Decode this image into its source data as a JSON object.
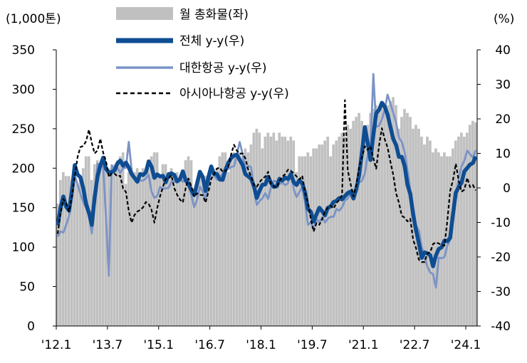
{
  "chart_data": {
    "type": "bar+line",
    "left_unit": "(1,000톤)",
    "right_unit": "(%)",
    "left_ylim": [
      0,
      350
    ],
    "right_ylim": [
      -40,
      40
    ],
    "left_ticks": [
      0,
      50,
      100,
      150,
      200,
      250,
      300,
      350
    ],
    "right_ticks": [
      -40,
      -30,
      -20,
      -10,
      0,
      10,
      20,
      30,
      40
    ],
    "x_tick_labels": [
      "'12.1",
      "'13.7",
      "'15.1",
      "'16.7",
      "'18.1",
      "'19.7",
      "'21.1",
      "'22.7",
      "'24.1"
    ],
    "x_tick_month_index": [
      0,
      18,
      36,
      54,
      72,
      90,
      108,
      126,
      144
    ],
    "n_months": 148,
    "colors": {
      "bar": "#c0c0c0",
      "total": "#0e4d92",
      "korean_air": "#7b93c6",
      "asiana": "#000000"
    },
    "legend": [
      {
        "label": "월 총화물(좌)",
        "style": "bar"
      },
      {
        "label": "전체 y-y(우)",
        "style": "total"
      },
      {
        "label": "대한항공 y-y(우)",
        "style": "korean_air"
      },
      {
        "label": "아시아나항공 y-y(우)",
        "style": "asiana"
      }
    ],
    "bars_monthly_total": [
      155,
      185,
      195,
      190,
      190,
      185,
      190,
      180,
      185,
      200,
      215,
      215,
      185,
      205,
      210,
      205,
      210,
      200,
      200,
      195,
      205,
      210,
      215,
      220,
      180,
      195,
      200,
      195,
      200,
      190,
      200,
      195,
      200,
      215,
      220,
      220,
      190,
      205,
      205,
      195,
      200,
      190,
      195,
      185,
      195,
      210,
      215,
      210,
      175,
      185,
      190,
      185,
      190,
      185,
      195,
      190,
      200,
      215,
      220,
      220,
      195,
      210,
      220,
      215,
      220,
      215,
      225,
      220,
      230,
      245,
      250,
      245,
      225,
      240,
      245,
      240,
      245,
      235,
      245,
      240,
      240,
      235,
      240,
      235,
      195,
      215,
      215,
      215,
      220,
      215,
      225,
      225,
      230,
      230,
      235,
      240,
      215,
      230,
      235,
      240,
      245,
      240,
      255,
      250,
      260,
      265,
      270,
      260,
      235,
      255,
      270,
      275,
      280,
      275,
      280,
      275,
      280,
      285,
      290,
      280,
      250,
      265,
      275,
      270,
      265,
      250,
      255,
      250,
      240,
      230,
      240,
      235,
      220,
      225,
      220,
      215,
      220,
      215,
      215,
      225,
      235,
      240,
      245,
      240,
      245,
      255,
      260,
      258
    ],
    "series": [
      {
        "name": "전체 y-y(우)",
        "key": "total",
        "anchors": [
          [
            0,
            -10
          ],
          [
            2,
            -3
          ],
          [
            4,
            -6
          ],
          [
            6,
            6
          ],
          [
            8,
            3
          ],
          [
            10,
            -4
          ],
          [
            12,
            -10
          ],
          [
            14,
            4
          ],
          [
            16,
            8
          ],
          [
            18,
            4
          ],
          [
            20,
            6
          ],
          [
            22,
            8
          ],
          [
            24,
            7
          ],
          [
            26,
            4
          ],
          [
            28,
            2
          ],
          [
            30,
            4
          ],
          [
            32,
            7
          ],
          [
            34,
            4
          ],
          [
            36,
            4
          ],
          [
            38,
            2
          ],
          [
            40,
            4
          ],
          [
            42,
            2
          ],
          [
            44,
            5
          ],
          [
            46,
            1
          ],
          [
            48,
            -2
          ],
          [
            50,
            5
          ],
          [
            52,
            0
          ],
          [
            54,
            6
          ],
          [
            56,
            4
          ],
          [
            58,
            2
          ],
          [
            60,
            8
          ],
          [
            62,
            10
          ],
          [
            64,
            8
          ],
          [
            66,
            4
          ],
          [
            68,
            2
          ],
          [
            70,
            -2
          ],
          [
            72,
            0
          ],
          [
            74,
            3
          ],
          [
            76,
            0
          ],
          [
            78,
            2
          ],
          [
            80,
            2
          ],
          [
            82,
            4
          ],
          [
            84,
            1
          ],
          [
            86,
            2
          ],
          [
            88,
            -5
          ],
          [
            90,
            -9
          ],
          [
            92,
            -6
          ],
          [
            94,
            -8
          ],
          [
            96,
            -5
          ],
          [
            98,
            -4
          ],
          [
            100,
            -3
          ],
          [
            102,
            -1
          ],
          [
            104,
            -3
          ],
          [
            106,
            3
          ],
          [
            108,
            18
          ],
          [
            110,
            8
          ],
          [
            112,
            22
          ],
          [
            114,
            24
          ],
          [
            116,
            22
          ],
          [
            118,
            15
          ],
          [
            120,
            10
          ],
          [
            122,
            6
          ],
          [
            124,
            -2
          ],
          [
            126,
            -12
          ],
          [
            128,
            -20
          ],
          [
            130,
            -18
          ],
          [
            132,
            -22
          ],
          [
            134,
            -18
          ],
          [
            136,
            -16
          ],
          [
            138,
            -15
          ],
          [
            140,
            -2
          ],
          [
            142,
            2
          ],
          [
            144,
            6
          ],
          [
            146,
            8
          ],
          [
            147,
            9
          ]
        ]
      },
      {
        "name": "대한항공 y-y(우)",
        "key": "korean_air",
        "anchors": [
          [
            0,
            -15
          ],
          [
            2,
            -12
          ],
          [
            4,
            -9
          ],
          [
            6,
            4
          ],
          [
            8,
            -2
          ],
          [
            10,
            -5
          ],
          [
            12,
            -13
          ],
          [
            14,
            7
          ],
          [
            16,
            7
          ],
          [
            18,
            -25
          ],
          [
            19,
            7
          ],
          [
            21,
            5
          ],
          [
            23,
            5
          ],
          [
            24,
            6
          ],
          [
            25,
            14
          ],
          [
            26,
            5
          ],
          [
            28,
            1
          ],
          [
            30,
            3
          ],
          [
            32,
            4
          ],
          [
            34,
            -4
          ],
          [
            36,
            0
          ],
          [
            38,
            -1
          ],
          [
            40,
            2
          ],
          [
            42,
            2
          ],
          [
            44,
            2
          ],
          [
            46,
            3
          ],
          [
            48,
            -6
          ],
          [
            50,
            1
          ],
          [
            52,
            -4
          ],
          [
            54,
            4
          ],
          [
            56,
            2
          ],
          [
            58,
            4
          ],
          [
            60,
            6
          ],
          [
            62,
            7
          ],
          [
            64,
            13
          ],
          [
            66,
            6
          ],
          [
            68,
            5
          ],
          [
            70,
            -5
          ],
          [
            72,
            -2
          ],
          [
            74,
            -3
          ],
          [
            76,
            2
          ],
          [
            78,
            2
          ],
          [
            80,
            0
          ],
          [
            82,
            4
          ],
          [
            84,
            -3
          ],
          [
            86,
            0
          ],
          [
            88,
            -10
          ],
          [
            90,
            -11
          ],
          [
            92,
            -9
          ],
          [
            94,
            -10
          ],
          [
            96,
            -9
          ],
          [
            98,
            -6
          ],
          [
            100,
            -5
          ],
          [
            102,
            -2
          ],
          [
            104,
            0
          ],
          [
            106,
            1
          ],
          [
            108,
            5
          ],
          [
            110,
            12
          ],
          [
            111,
            34
          ],
          [
            112,
            18
          ],
          [
            114,
            20
          ],
          [
            116,
            26
          ],
          [
            118,
            22
          ],
          [
            120,
            15
          ],
          [
            122,
            10
          ],
          [
            124,
            0
          ],
          [
            126,
            -10
          ],
          [
            128,
            -16
          ],
          [
            130,
            -22
          ],
          [
            132,
            -26
          ],
          [
            133,
            -29
          ],
          [
            134,
            -20
          ],
          [
            136,
            -20
          ],
          [
            138,
            -15
          ],
          [
            140,
            -2
          ],
          [
            142,
            6
          ],
          [
            144,
            10
          ],
          [
            146,
            9
          ],
          [
            147,
            10
          ]
        ]
      },
      {
        "name": "아시아나항공 y-y(우)",
        "key": "asiana",
        "anchors": [
          [
            0,
            -13
          ],
          [
            2,
            -3
          ],
          [
            4,
            -7
          ],
          [
            6,
            4
          ],
          [
            8,
            12
          ],
          [
            10,
            14
          ],
          [
            11,
            16
          ],
          [
            12,
            12
          ],
          [
            14,
            10
          ],
          [
            15,
            15
          ],
          [
            16,
            10
          ],
          [
            18,
            4
          ],
          [
            20,
            5
          ],
          [
            22,
            3
          ],
          [
            24,
            -2
          ],
          [
            26,
            -10
          ],
          [
            28,
            -6
          ],
          [
            30,
            -6
          ],
          [
            32,
            -4
          ],
          [
            34,
            -9
          ],
          [
            36,
            -3
          ],
          [
            38,
            2
          ],
          [
            40,
            3
          ],
          [
            42,
            -2
          ],
          [
            44,
            -4
          ],
          [
            46,
            2
          ],
          [
            48,
            -2
          ],
          [
            50,
            -2
          ],
          [
            52,
            -4
          ],
          [
            54,
            3
          ],
          [
            56,
            6
          ],
          [
            58,
            4
          ],
          [
            60,
            7
          ],
          [
            62,
            13
          ],
          [
            64,
            10
          ],
          [
            66,
            8
          ],
          [
            68,
            3
          ],
          [
            70,
            0
          ],
          [
            72,
            2
          ],
          [
            74,
            4
          ],
          [
            76,
            0
          ],
          [
            78,
            2
          ],
          [
            80,
            5
          ],
          [
            82,
            6
          ],
          [
            84,
            4
          ],
          [
            86,
            3
          ],
          [
            88,
            -5
          ],
          [
            90,
            -12
          ],
          [
            92,
            -10
          ],
          [
            94,
            -7
          ],
          [
            96,
            -6
          ],
          [
            98,
            -5
          ],
          [
            100,
            -2
          ],
          [
            101,
            26
          ],
          [
            102,
            5
          ],
          [
            104,
            -3
          ],
          [
            106,
            5
          ],
          [
            108,
            12
          ],
          [
            110,
            12
          ],
          [
            112,
            6
          ],
          [
            114,
            18
          ],
          [
            116,
            12
          ],
          [
            118,
            3
          ],
          [
            120,
            -5
          ],
          [
            122,
            -9
          ],
          [
            124,
            -10
          ],
          [
            126,
            -18
          ],
          [
            128,
            -22
          ],
          [
            130,
            -20
          ],
          [
            132,
            -16
          ],
          [
            134,
            -17
          ],
          [
            136,
            -16
          ],
          [
            138,
            -2
          ],
          [
            140,
            7
          ],
          [
            142,
            -2
          ],
          [
            144,
            2
          ],
          [
            146,
            0
          ],
          [
            147,
            0
          ]
        ]
      }
    ]
  }
}
